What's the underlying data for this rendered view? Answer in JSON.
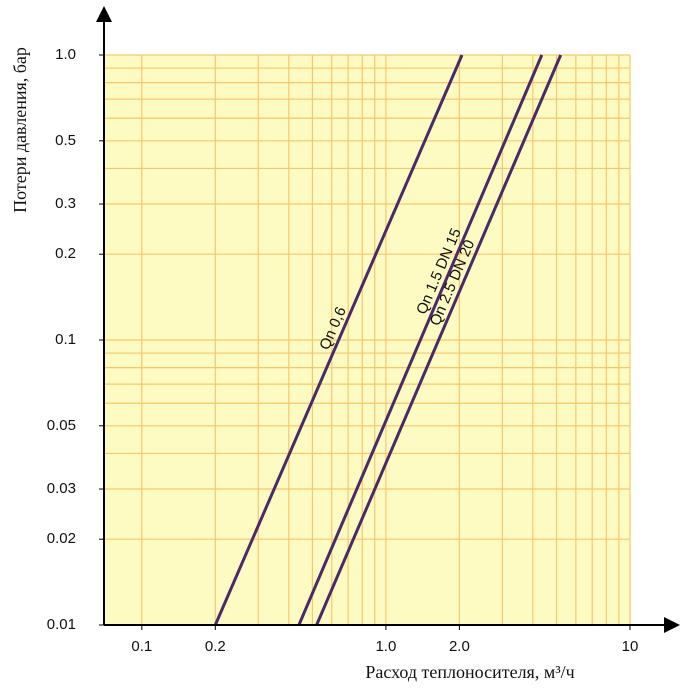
{
  "chart_data": {
    "type": "line",
    "xlabel": "Расход теплоносителя, м³/ч",
    "ylabel": "Потери давления, бар",
    "xscale": "log",
    "yscale": "log",
    "xlim": [
      0.07,
      10
    ],
    "ylim": [
      0.01,
      1
    ],
    "xticks": [
      0.1,
      0.2,
      {
        "value": 1,
        "label": "1.0"
      },
      {
        "value": 2,
        "label": "2.0"
      },
      10
    ],
    "yticks": [
      0.01,
      0.02,
      0.03,
      0.05,
      0.1,
      0.2,
      0.3,
      0.5,
      {
        "value": 1,
        "label": "1.0"
      }
    ],
    "xgrid": [
      0.1,
      0.2,
      0.3,
      0.4,
      0.5,
      0.6,
      0.7,
      0.8,
      0.9,
      1,
      2,
      3,
      4,
      5,
      6,
      7,
      8,
      9,
      10
    ],
    "ygrid": [
      0.02,
      0.03,
      0.04,
      0.05,
      0.06,
      0.07,
      0.08,
      0.09,
      0.1,
      0.2,
      0.3,
      0.4,
      0.5,
      0.6,
      0.7,
      0.8,
      0.9,
      1
    ],
    "background": "#fdfbc2",
    "grid_color": "#f6c86e",
    "series": [
      {
        "name": "Qn 0,6",
        "color": "#4b2a68",
        "x": [
          0.2,
          2.05
        ],
        "values": [
          0.01,
          1
        ]
      },
      {
        "name": "Qn 1.5 DN 15",
        "color": "#4b2a68",
        "x": [
          0.44,
          4.35
        ],
        "values": [
          0.01,
          1
        ]
      },
      {
        "name": "Qn 2.5 DN 20",
        "color": "#4b2a68",
        "x": [
          0.52,
          5.2
        ],
        "values": [
          0.01,
          1
        ]
      }
    ]
  }
}
